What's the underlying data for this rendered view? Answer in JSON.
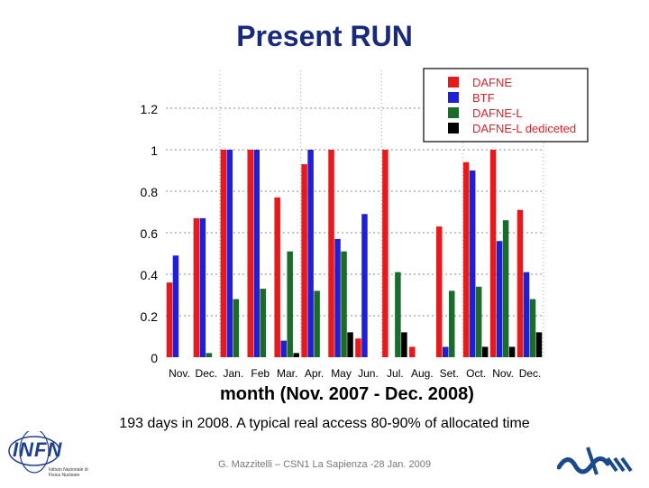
{
  "page": {
    "title": "Present RUN",
    "subtitle": "193 days in 2008. A typical real access 80-90% of allocated time",
    "footer": "G. Mazzitelli – CSN1 La Sapienza -28 Jan. 2009",
    "logo_left_text": "INFN",
    "logo_left_subtext": "Istituto Nazionale di Fisica Nucleare"
  },
  "colors": {
    "title": "#1a2a7a",
    "DAFNE": "#e41a1c",
    "BTF": "#1f1fd8",
    "DAFNE-L": "#1b6b2b",
    "DAFNE-L dediceted": "#000000",
    "legend_text": "#d8222a"
  },
  "chart_data": {
    "type": "bar",
    "title": "",
    "xlabel": "month (Nov. 2007 - Dec. 2008)",
    "ylabel": "",
    "ylim": [
      0,
      1.3
    ],
    "yticks": [
      0,
      0.2,
      0.4,
      0.6,
      0.8,
      1,
      1.2
    ],
    "ytick_labels": [
      "0",
      "0.2",
      "0.4",
      "0.6",
      "0.8",
      "1",
      "1.2"
    ],
    "categories": [
      "Nov.",
      "Dec.",
      "Jan.",
      "Feb",
      "Mar.",
      "Apr.",
      "May",
      "Jun.",
      "Jul.",
      "Aug.",
      "Set.",
      "Oct.",
      "Nov.",
      "Dec."
    ],
    "legend_position": "top-right",
    "series": [
      {
        "name": "DAFNE",
        "values": [
          0.36,
          0.67,
          1.0,
          1.0,
          0.77,
          0.93,
          1.0,
          0.09,
          1.0,
          0.05,
          0.63,
          0.94,
          1.0,
          0.71
        ]
      },
      {
        "name": "BTF",
        "values": [
          0.49,
          0.67,
          1.0,
          1.0,
          0.08,
          1.0,
          0.57,
          0.69,
          0.0,
          0.0,
          0.05,
          0.9,
          0.56,
          0.41
        ]
      },
      {
        "name": "DAFNE-L",
        "values": [
          0.0,
          0.02,
          0.28,
          0.33,
          0.51,
          0.32,
          0.51,
          0.0,
          0.41,
          0.0,
          0.32,
          0.34,
          0.66,
          0.28
        ]
      },
      {
        "name": "DAFNE-L dediceted",
        "values": [
          0.0,
          0.0,
          0.0,
          0.0,
          0.02,
          0.0,
          0.12,
          0.0,
          0.12,
          0.0,
          0.0,
          0.05,
          0.05,
          0.12
        ]
      }
    ]
  }
}
